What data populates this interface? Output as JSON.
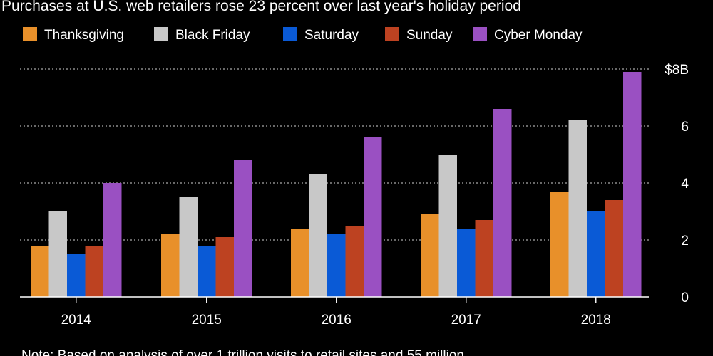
{
  "chart_data": {
    "type": "bar",
    "subtitle": "Purchases at U.S. web retailers rose 23 percent over last year's holiday period",
    "categories": [
      "2014",
      "2015",
      "2016",
      "2017",
      "2018"
    ],
    "series": [
      {
        "name": "Thanksgiving",
        "color": "#e8902a",
        "values": [
          1.8,
          2.2,
          2.4,
          2.9,
          3.7
        ]
      },
      {
        "name": "Black Friday",
        "color": "#c8c8c8",
        "values": [
          3.0,
          3.5,
          4.3,
          5.0,
          6.2
        ]
      },
      {
        "name": "Saturday",
        "color": "#0a5ad6",
        "values": [
          1.5,
          1.8,
          2.2,
          2.4,
          3.0
        ]
      },
      {
        "name": "Sunday",
        "color": "#bd4221",
        "values": [
          1.8,
          2.1,
          2.5,
          2.7,
          3.4
        ]
      },
      {
        "name": "Cyber Monday",
        "color": "#9a50c2",
        "values": [
          4.0,
          4.8,
          5.6,
          6.6,
          7.9
        ]
      }
    ],
    "ylim": [
      0,
      8
    ],
    "y_ticks": [
      {
        "value": 0,
        "label": "0"
      },
      {
        "value": 2,
        "label": "2"
      },
      {
        "value": 4,
        "label": "4"
      },
      {
        "value": 6,
        "label": "6"
      },
      {
        "value": 8,
        "label": "$8B"
      }
    ],
    "y_axis_position": "right",
    "grid": true,
    "legend_position": "top-left",
    "note": "Note: Based on analysis of over 1 trillion visits to retail sites and 55 million"
  }
}
